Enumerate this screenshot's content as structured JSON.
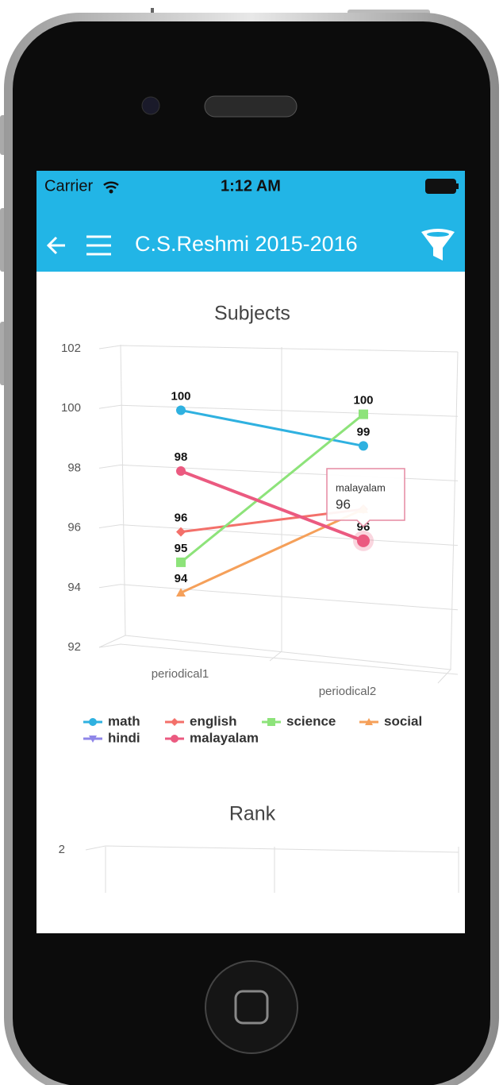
{
  "status_bar": {
    "carrier": "Carrier",
    "time": "1:12 AM"
  },
  "app_bar": {
    "title": "C.S.Reshmi 2015-2016"
  },
  "chart_data": [
    {
      "type": "line",
      "title": "Subjects",
      "categories": [
        "periodical1",
        "periodical2"
      ],
      "ylim": [
        92,
        102
      ],
      "yticks": [
        92,
        94,
        96,
        98,
        100,
        102
      ],
      "grid": true,
      "series": [
        {
          "name": "math",
          "color": "#2fb1e0",
          "marker": "circle",
          "values": [
            100,
            99
          ]
        },
        {
          "name": "english",
          "color": "#f3706a",
          "marker": "diamond",
          "values": [
            96,
            97
          ]
        },
        {
          "name": "science",
          "color": "#8de37a",
          "marker": "square",
          "values": [
            95,
            100
          ]
        },
        {
          "name": "social",
          "color": "#f5a05a",
          "marker": "triangle",
          "values": [
            94,
            97
          ]
        },
        {
          "name": "hindi",
          "color": "#8f86e8",
          "marker": "triangle-down",
          "values": [
            null,
            null
          ]
        },
        {
          "name": "malayalam",
          "color": "#eb5a80",
          "marker": "circle",
          "values": [
            98,
            96
          ]
        }
      ],
      "legend": "bottom"
    },
    {
      "type": "line",
      "title": "Rank",
      "ylim": [
        0,
        2
      ],
      "yticks": [
        2
      ],
      "grid": true
    }
  ]
}
